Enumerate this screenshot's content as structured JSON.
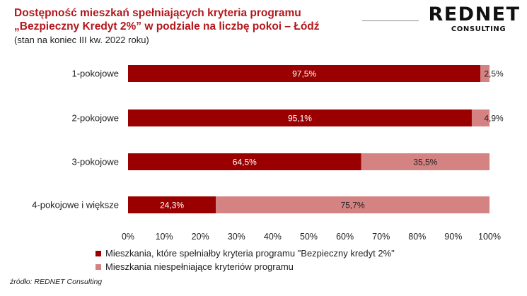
{
  "header": {
    "title": "Dostępność mieszkań spełniających kryteria programu „Bezpieczny Kredyt 2%” w podziale na liczbę pokoi – Łódź",
    "subtitle": "(stan na koniec III kw. 2022 roku)"
  },
  "logo": {
    "main": "REDNET",
    "sub": "CONSULTING"
  },
  "footer": {
    "source": "źródło: REDNET Consulting"
  },
  "colors": {
    "series1": "#9a0000",
    "series2": "#d48282",
    "title": "#b3171c"
  },
  "chart_data": {
    "type": "bar",
    "orientation": "horizontal",
    "stacked": true,
    "title": "Dostępność mieszkań spełniających kryteria programu „Bezpieczny Kredyt 2%” w podziale na liczbę pokoi – Łódź",
    "subtitle": "(stan na koniec III kw. 2022 roku)",
    "categories": [
      "1-pokojowe",
      "2-pokojowe",
      "3-pokojowe",
      "4-pokojowe i większe"
    ],
    "series": [
      {
        "name": "Mieszkania, które spełniałby kryteria programu \"Bezpieczny kredyt 2%\"",
        "values": [
          97.5,
          95.1,
          64.5,
          24.3
        ],
        "labels": [
          "97,5%",
          "95,1%",
          "64,5%",
          "24,3%"
        ],
        "color": "#9a0000"
      },
      {
        "name": "Mieszkania niespełniające kryteriów programu",
        "values": [
          2.5,
          4.9,
          35.5,
          75.7
        ],
        "labels": [
          "2,5%",
          "4,9%",
          "35,5%",
          "75,7%"
        ],
        "color": "#d48282"
      }
    ],
    "xticks": [
      "0%",
      "10%",
      "20%",
      "30%",
      "40%",
      "50%",
      "60%",
      "70%",
      "80%",
      "90%",
      "100%"
    ],
    "xlim": [
      0,
      100
    ],
    "grid": false,
    "legend_position": "bottom-left"
  }
}
